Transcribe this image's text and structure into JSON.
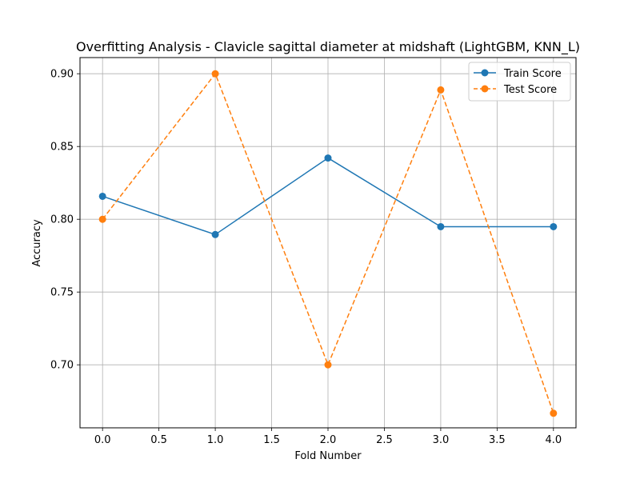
{
  "chart_data": {
    "type": "line",
    "title": "Overfitting Analysis - Clavicle sagittal diameter at midshaft (LightGBM, KNN_L)",
    "xlabel": "Fold Number",
    "ylabel": "Accuracy",
    "x": [
      0,
      1,
      2,
      3,
      4
    ],
    "xlim": [
      -0.2,
      4.2
    ],
    "ylim": [
      0.6567,
      0.9111
    ],
    "xticks": [
      0.0,
      0.5,
      1.0,
      1.5,
      2.0,
      2.5,
      3.0,
      3.5,
      4.0
    ],
    "xtick_labels": [
      "0.0",
      "0.5",
      "1.0",
      "1.5",
      "2.0",
      "2.5",
      "3.0",
      "3.5",
      "4.0"
    ],
    "yticks": [
      0.7,
      0.75,
      0.8,
      0.85,
      0.9
    ],
    "ytick_labels": [
      "0.70",
      "0.75",
      "0.80",
      "0.85",
      "0.90"
    ],
    "grid": true,
    "legend_position": "top-right",
    "series": [
      {
        "name": "Train Score",
        "values": [
          0.8158,
          0.7895,
          0.8421,
          0.7949,
          0.7949
        ],
        "color": "#1f77b4",
        "line_style": "solid",
        "marker": "circle"
      },
      {
        "name": "Test Score",
        "values": [
          0.8,
          0.9,
          0.7,
          0.8889,
          0.6667
        ],
        "color": "#ff7f0e",
        "line_style": "dashed",
        "marker": "circle"
      }
    ]
  }
}
